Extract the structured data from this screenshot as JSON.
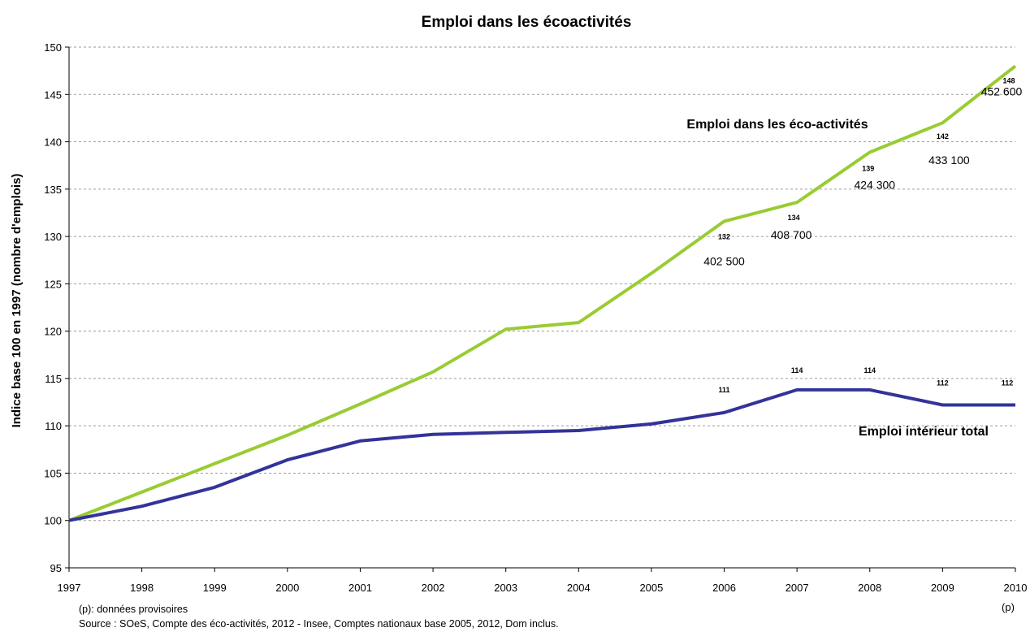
{
  "chart_data": {
    "type": "line",
    "title": "Emploi dans les écoactivités",
    "ylabel": "Indice base 100 en 1997 (nombre d'emplois)",
    "xlabel": "",
    "x": [
      "1997",
      "1998",
      "1999",
      "2000",
      "2001",
      "2002",
      "2003",
      "2004",
      "2005",
      "2006",
      "2007",
      "2008",
      "2009",
      "2010"
    ],
    "x_suffix_label": "(p)",
    "ylim": [
      95,
      150
    ],
    "yticks": [
      "95",
      "100",
      "105",
      "110",
      "115",
      "120",
      "125",
      "130",
      "135",
      "140",
      "145",
      "150"
    ],
    "grid": true,
    "series": [
      {
        "name": "Emploi dans les éco-activités",
        "color": "#99cc33",
        "values": [
          100,
          103,
          106,
          109,
          112.3,
          115.7,
          120.2,
          120.9,
          126.1,
          131.6,
          133.6,
          138.9,
          142,
          148
        ],
        "index_labels": [
          {
            "x": "2006",
            "text": "132"
          },
          {
            "x": "2007",
            "text": "134"
          },
          {
            "x": "2008",
            "text": "139"
          },
          {
            "x": "2009",
            "text": "142"
          },
          {
            "x": "2010",
            "text": "148"
          }
        ],
        "job_labels": [
          {
            "x": "2006",
            "text": "402 500"
          },
          {
            "x": "2007",
            "text": "408 700"
          },
          {
            "x": "2008",
            "text": "424 300"
          },
          {
            "x": "2009",
            "text": "433 100"
          },
          {
            "x": "2010",
            "text": "452 600"
          }
        ]
      },
      {
        "name": "Emploi intérieur total",
        "color": "#333399",
        "values": [
          100,
          101.5,
          103.5,
          106.4,
          108.4,
          109.1,
          109.3,
          109.5,
          110.2,
          111.4,
          113.8,
          113.8,
          112.2,
          112.2
        ],
        "index_labels": [
          {
            "x": "2006",
            "text": "111"
          },
          {
            "x": "2007",
            "text": "114"
          },
          {
            "x": "2008",
            "text": "114"
          },
          {
            "x": "2009",
            "text": "112"
          },
          {
            "x": "2010",
            "text": "112"
          }
        ]
      }
    ],
    "notes": [
      "(p): données provisoires",
      "Source : SOeS, Compte des éco-activités, 2012 - Insee, Comptes nationaux base 2005, 2012, Dom inclus."
    ]
  }
}
